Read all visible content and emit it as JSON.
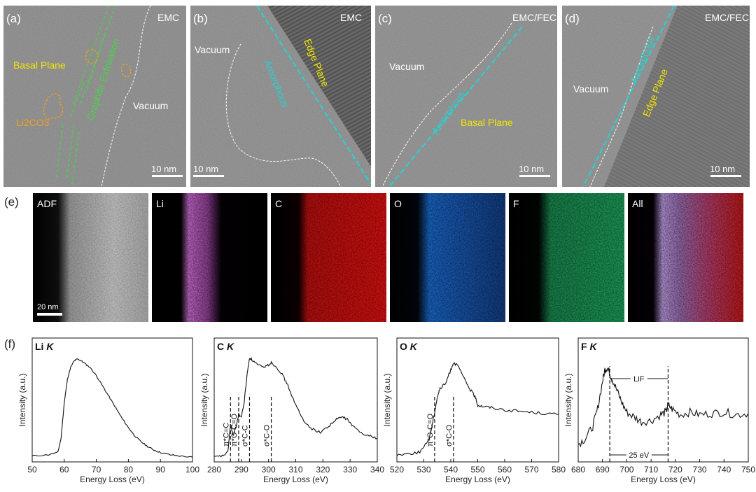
{
  "tem": [
    {
      "letter": "(a)",
      "tag": "EMC",
      "scale": "10 nm",
      "labels": {
        "basal": "Basal Plane",
        "li2co3": "Li2CO3",
        "graphite": "Graphite Exfoliation",
        "vacuum": "Vacuum"
      }
    },
    {
      "letter": "(b)",
      "tag": "EMC",
      "scale": "10 nm",
      "labels": {
        "vacuum": "Vacuum",
        "amorphous": "Amorphous",
        "edge": "Edge Plane"
      }
    },
    {
      "letter": "(c)",
      "tag": "EMC/FEC",
      "scale": "10 nm",
      "labels": {
        "vacuum": "Vacuum",
        "amorphous": "Amorphous",
        "basal": "Basal Plane"
      }
    },
    {
      "letter": "(d)",
      "tag": "EMC/FEC",
      "scale": "10 nm",
      "labels": {
        "vacuum": "Vacuum",
        "amorphous": "Amorphous",
        "edge": "Edge Plane"
      }
    }
  ],
  "eds": {
    "letter": "(e)",
    "scale": "20 nm",
    "maps": [
      {
        "label": "ADF",
        "color": "#c8c8c8"
      },
      {
        "label": "Li",
        "color": "#d070d8"
      },
      {
        "label": "C",
        "color": "#e01010"
      },
      {
        "label": "O",
        "color": "#1a6fd6"
      },
      {
        "label": "F",
        "color": "#1fa860"
      },
      {
        "label": "All",
        "color": "#c05090"
      }
    ]
  },
  "eels": {
    "letter": "(f)",
    "ylabel": "Intensity (a.u.)",
    "xlabel": "Energy Loss (eV)"
  },
  "chart_data": [
    {
      "type": "line",
      "title": "Li K",
      "xlim": [
        50,
        100
      ],
      "xticks": [
        50,
        60,
        70,
        80,
        90,
        100
      ],
      "x": [
        50,
        55,
        58,
        59,
        60,
        61,
        62,
        63,
        64,
        65,
        66,
        68,
        70,
        72,
        74,
        76,
        78,
        80,
        82,
        84,
        86,
        88,
        90,
        93,
        96,
        100
      ],
      "y": [
        0.05,
        0.06,
        0.08,
        0.2,
        0.5,
        0.7,
        0.8,
        0.85,
        0.87,
        0.86,
        0.84,
        0.8,
        0.73,
        0.64,
        0.55,
        0.46,
        0.37,
        0.29,
        0.22,
        0.17,
        0.13,
        0.1,
        0.08,
        0.06,
        0.05,
        0.04
      ],
      "annotations": []
    },
    {
      "type": "line",
      "title": "C K",
      "xlim": [
        280,
        340
      ],
      "xticks": [
        280,
        290,
        300,
        310,
        320,
        330,
        340
      ],
      "x": [
        280,
        283,
        285,
        286,
        287,
        288,
        289,
        290,
        291,
        292,
        293,
        294,
        296,
        298,
        300,
        301,
        303,
        305,
        307,
        310,
        313,
        316,
        319,
        322,
        325,
        327,
        329,
        331,
        334,
        337,
        340
      ],
      "y": [
        0.04,
        0.05,
        0.08,
        0.32,
        0.22,
        0.3,
        0.4,
        0.38,
        0.5,
        0.72,
        0.88,
        0.86,
        0.82,
        0.8,
        0.82,
        0.84,
        0.8,
        0.74,
        0.65,
        0.48,
        0.34,
        0.28,
        0.25,
        0.3,
        0.36,
        0.38,
        0.36,
        0.3,
        0.25,
        0.22,
        0.2
      ],
      "annotations": [
        {
          "x": 286,
          "text": "π*C=C"
        },
        {
          "x": 289,
          "text": "π*O-C=O"
        },
        {
          "x": 293,
          "text": "σ*C-C"
        },
        {
          "x": 301,
          "text": "σ*C-O"
        }
      ]
    },
    {
      "type": "line",
      "title": "O K",
      "xlim": [
        520,
        580
      ],
      "xticks": [
        520,
        530,
        540,
        550,
        560,
        570,
        580
      ],
      "x": [
        520,
        524,
        528,
        530,
        532,
        533,
        534,
        535,
        536,
        538,
        540,
        541,
        543,
        545,
        547,
        549,
        550,
        552,
        555,
        560,
        565,
        570,
        575,
        580
      ],
      "y": [
        0.06,
        0.07,
        0.08,
        0.12,
        0.2,
        0.3,
        0.42,
        0.55,
        0.62,
        0.66,
        0.78,
        0.84,
        0.8,
        0.7,
        0.62,
        0.55,
        0.48,
        0.47,
        0.46,
        0.44,
        0.43,
        0.42,
        0.41,
        0.4
      ],
      "annotations": [
        {
          "x": 534,
          "text": "π*O-C=O"
        },
        {
          "x": 541,
          "text": "σ*C-O"
        }
      ]
    },
    {
      "type": "line",
      "title": "F K",
      "xlim": [
        680,
        750
      ],
      "xticks": [
        680,
        690,
        700,
        710,
        720,
        730,
        740,
        750
      ],
      "x": [
        680,
        683,
        686,
        688,
        690,
        691,
        692,
        693,
        694,
        696,
        698,
        700,
        703,
        706,
        710,
        714,
        716,
        717,
        719,
        722,
        726,
        730,
        735,
        740,
        745,
        750
      ],
      "y": [
        0.15,
        0.2,
        0.3,
        0.45,
        0.68,
        0.78,
        0.8,
        0.75,
        0.7,
        0.6,
        0.5,
        0.42,
        0.38,
        0.34,
        0.35,
        0.4,
        0.42,
        0.48,
        0.44,
        0.4,
        0.42,
        0.4,
        0.41,
        0.42,
        0.4,
        0.41
      ],
      "annotations": [
        {
          "x": 693,
          "text": ""
        },
        {
          "x": 717,
          "text": ""
        }
      ],
      "brackets": {
        "top": "LiF",
        "bottom": "25 eV"
      }
    }
  ]
}
